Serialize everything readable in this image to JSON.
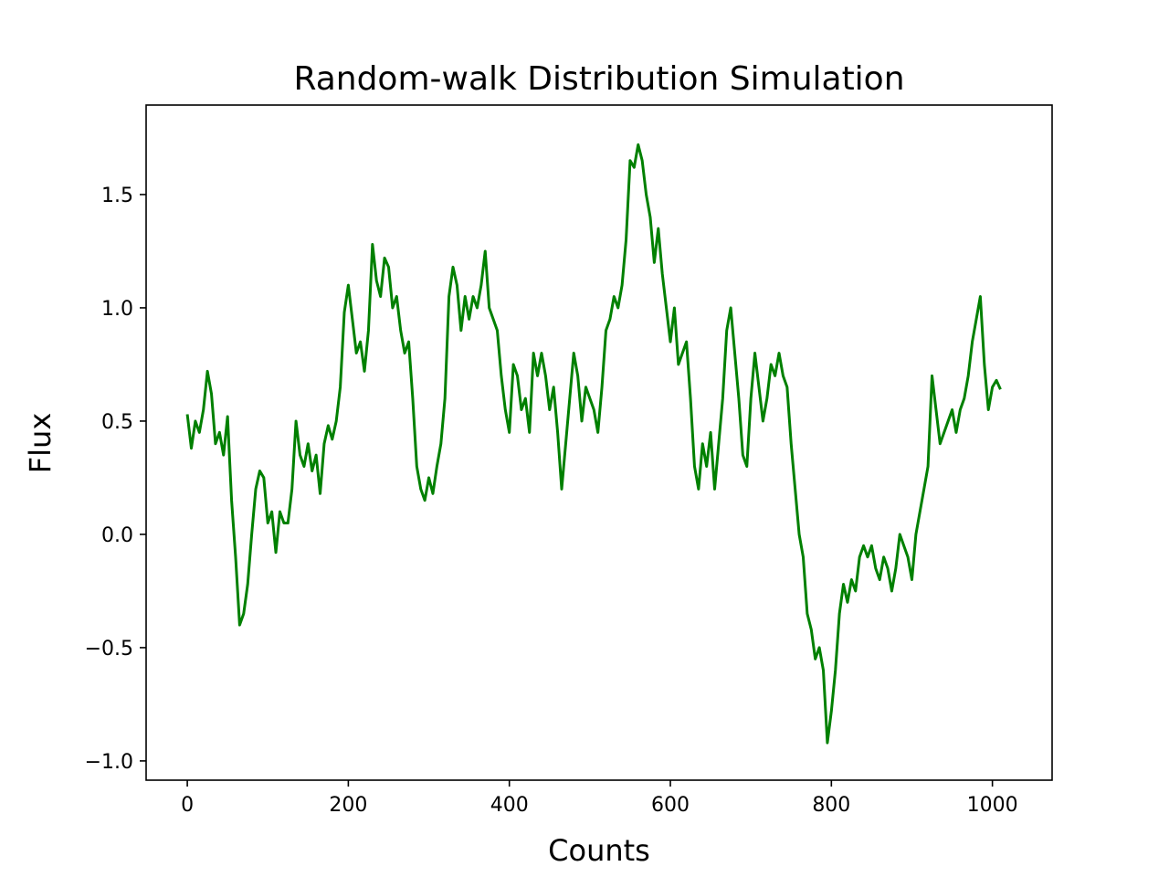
{
  "chart_data": {
    "type": "line",
    "title": "Random-walk Distribution Simulation",
    "xlabel": "Counts",
    "ylabel": "Flux",
    "xlim": [
      -51.15,
      1074.15
    ],
    "ylim": [
      -1.085,
      1.895
    ],
    "xticks": [
      0,
      200,
      400,
      600,
      800,
      1000
    ],
    "yticks": [
      {
        "value": -1.0,
        "label": "−1.0"
      },
      {
        "value": -0.5,
        "label": "−0.5"
      },
      {
        "value": 0.0,
        "label": "0.0"
      },
      0.5,
      {
        "value": 1.0,
        "label": "1.0"
      },
      1.5
    ],
    "x": [
      0,
      5,
      10,
      15,
      20,
      25,
      30,
      35,
      40,
      45,
      50,
      55,
      60,
      65,
      70,
      75,
      80,
      85,
      90,
      95,
      100,
      105,
      110,
      115,
      120,
      125,
      130,
      135,
      140,
      145,
      150,
      155,
      160,
      165,
      170,
      175,
      180,
      185,
      190,
      195,
      200,
      205,
      210,
      215,
      220,
      225,
      230,
      235,
      240,
      245,
      250,
      255,
      260,
      265,
      270,
      275,
      280,
      285,
      290,
      295,
      300,
      305,
      310,
      315,
      320,
      325,
      330,
      335,
      340,
      345,
      350,
      355,
      360,
      365,
      370,
      375,
      380,
      385,
      390,
      395,
      400,
      405,
      410,
      415,
      420,
      425,
      430,
      435,
      440,
      445,
      450,
      455,
      460,
      465,
      470,
      475,
      480,
      485,
      490,
      495,
      500,
      505,
      510,
      515,
      520,
      525,
      530,
      535,
      540,
      545,
      550,
      555,
      560,
      565,
      570,
      575,
      580,
      585,
      590,
      595,
      600,
      605,
      610,
      615,
      620,
      625,
      630,
      635,
      640,
      645,
      650,
      655,
      660,
      665,
      670,
      675,
      680,
      685,
      690,
      695,
      700,
      705,
      710,
      715,
      720,
      725,
      730,
      735,
      740,
      745,
      750,
      755,
      760,
      765,
      770,
      775,
      780,
      785,
      790,
      795,
      800,
      805,
      810,
      815,
      820,
      825,
      830,
      835,
      840,
      845,
      850,
      855,
      860,
      865,
      870,
      875,
      880,
      885,
      890,
      895,
      900,
      905,
      910,
      915,
      920,
      925,
      930,
      935,
      940,
      945,
      950,
      955,
      960,
      965,
      970,
      975,
      980,
      985,
      990,
      995,
      1000,
      1005,
      1010
    ],
    "series": [
      {
        "name": "Flux",
        "color": "#008000",
        "values": [
          0.53,
          0.38,
          0.5,
          0.45,
          0.55,
          0.72,
          0.62,
          0.4,
          0.45,
          0.35,
          0.52,
          0.15,
          -0.1,
          -0.4,
          -0.35,
          -0.22,
          0.0,
          0.2,
          0.28,
          0.25,
          0.05,
          0.1,
          -0.08,
          0.1,
          0.05,
          0.05,
          0.2,
          0.5,
          0.35,
          0.3,
          0.4,
          0.28,
          0.35,
          0.18,
          0.4,
          0.48,
          0.42,
          0.5,
          0.65,
          0.98,
          1.1,
          0.95,
          0.8,
          0.85,
          0.72,
          0.9,
          1.28,
          1.12,
          1.05,
          1.22,
          1.18,
          1.0,
          1.05,
          0.9,
          0.8,
          0.85,
          0.6,
          0.3,
          0.2,
          0.15,
          0.25,
          0.18,
          0.3,
          0.4,
          0.6,
          1.05,
          1.18,
          1.1,
          0.9,
          1.05,
          0.95,
          1.05,
          1.0,
          1.1,
          1.25,
          1.0,
          0.95,
          0.9,
          0.7,
          0.55,
          0.45,
          0.75,
          0.7,
          0.55,
          0.6,
          0.45,
          0.8,
          0.7,
          0.8,
          0.7,
          0.55,
          0.65,
          0.45,
          0.2,
          0.4,
          0.6,
          0.8,
          0.7,
          0.5,
          0.65,
          0.6,
          0.55,
          0.45,
          0.65,
          0.9,
          0.95,
          1.05,
          1.0,
          1.1,
          1.3,
          1.65,
          1.62,
          1.72,
          1.65,
          1.5,
          1.4,
          1.2,
          1.35,
          1.15,
          1.0,
          0.85,
          1.0,
          0.75,
          0.8,
          0.85,
          0.6,
          0.3,
          0.2,
          0.4,
          0.3,
          0.45,
          0.2,
          0.4,
          0.6,
          0.9,
          1.0,
          0.8,
          0.6,
          0.35,
          0.3,
          0.6,
          0.8,
          0.65,
          0.5,
          0.6,
          0.75,
          0.7,
          0.8,
          0.7,
          0.65,
          0.4,
          0.2,
          0.0,
          -0.1,
          -0.35,
          -0.42,
          -0.55,
          -0.5,
          -0.6,
          -0.92,
          -0.78,
          -0.6,
          -0.35,
          -0.22,
          -0.3,
          -0.2,
          -0.25,
          -0.1,
          -0.05,
          -0.1,
          -0.05,
          -0.15,
          -0.2,
          -0.1,
          -0.15,
          -0.25,
          -0.15,
          0.0,
          -0.05,
          -0.1,
          -0.2,
          0.0,
          0.1,
          0.2,
          0.3,
          0.7,
          0.55,
          0.4,
          0.45,
          0.5,
          0.55,
          0.45,
          0.55,
          0.6,
          0.7,
          0.85,
          0.95,
          1.05,
          0.75,
          0.55,
          0.65,
          0.68,
          0.64
        ]
      }
    ]
  }
}
